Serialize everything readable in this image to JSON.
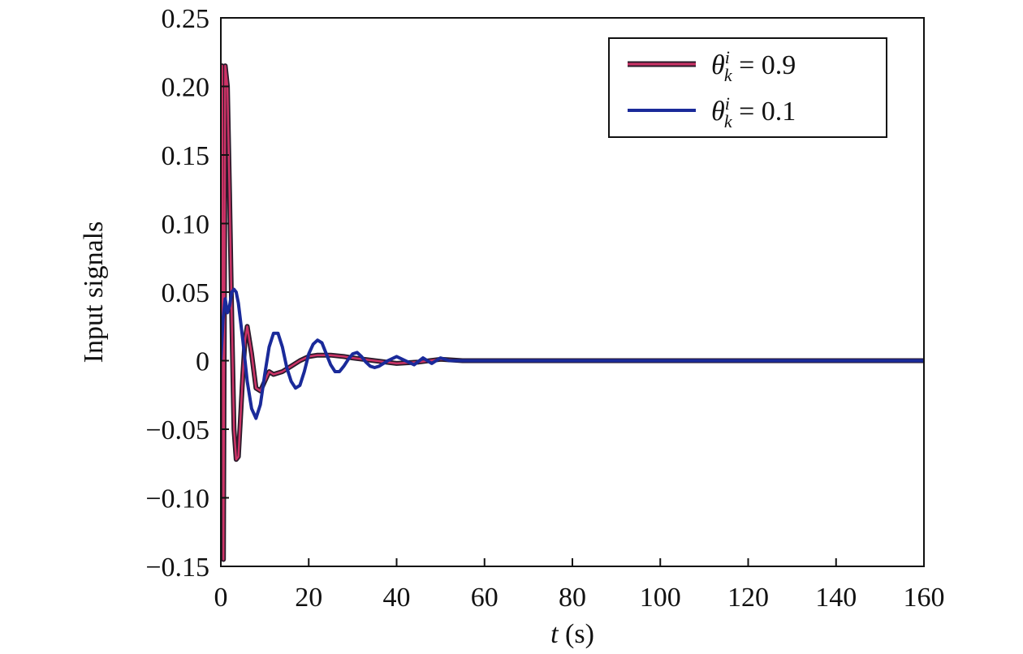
{
  "chart_data": {
    "type": "line",
    "title": "",
    "xlabel_italic": "t",
    "xlabel_rest": " (s)",
    "ylabel": "Input signals",
    "xlim": [
      0,
      160
    ],
    "ylim": [
      -0.15,
      0.25
    ],
    "x_ticks": [
      0,
      20,
      40,
      60,
      80,
      100,
      120,
      140,
      160
    ],
    "x_tick_labels": [
      "0",
      "20",
      "40",
      "60",
      "80",
      "100",
      "120",
      "140",
      "160"
    ],
    "y_ticks": [
      -0.15,
      -0.1,
      -0.05,
      0,
      0.05,
      0.1,
      0.15,
      0.2,
      0.25
    ],
    "y_tick_labels": [
      "−0.15",
      "−0.10",
      "−0.05",
      "0",
      "0.05",
      "0.10",
      "0.15",
      "0.20",
      "0.25"
    ],
    "grid": false,
    "legend_position": "top-right",
    "series": [
      {
        "name": "θ",
        "legend_sub": "k",
        "legend_sup": "i",
        "legend_value": " = 0.9",
        "color": "#cc3366",
        "edge_color": "#2a1a2a",
        "x": [
          0,
          0.3,
          0.6,
          1.0,
          1.5,
          2.0,
          2.5,
          3.0,
          3.5,
          4.0,
          4.5,
          5.0,
          5.5,
          6.0,
          7.0,
          8.0,
          9.0,
          10.0,
          11.0,
          12.0,
          14.0,
          16.0,
          18.0,
          20.0,
          22.0,
          25.0,
          28.0,
          30.0,
          35.0,
          40.0,
          45.0,
          50.0,
          55.0,
          60.0,
          70.0,
          80.0,
          100.0,
          120.0,
          140.0,
          160.0
        ],
        "y": [
          0.0,
          0.215,
          -0.145,
          0.215,
          0.2,
          0.12,
          0.03,
          -0.05,
          -0.072,
          -0.07,
          -0.04,
          -0.01,
          0.015,
          0.025,
          0.005,
          -0.02,
          -0.022,
          -0.015,
          -0.008,
          -0.01,
          -0.008,
          -0.004,
          0.0,
          0.003,
          0.004,
          0.004,
          0.003,
          0.002,
          0.0,
          -0.002,
          -0.001,
          0.001,
          0.0,
          0.0,
          0.0,
          0.0,
          0.0,
          0.0,
          0.0,
          0.0
        ]
      },
      {
        "name": "θ",
        "legend_sub": "k",
        "legend_sup": "i",
        "legend_value": " = 0.1",
        "color": "#1a2a9a",
        "x": [
          0,
          0.5,
          1.0,
          1.5,
          2.0,
          2.5,
          3.0,
          3.5,
          4.0,
          5.0,
          6.0,
          7.0,
          8.0,
          9.0,
          10.0,
          11.0,
          12.0,
          13.0,
          14.0,
          15.0,
          16.0,
          17.0,
          18.0,
          19.0,
          20.0,
          21.0,
          22.0,
          23.0,
          24.0,
          25.0,
          26.0,
          27.0,
          28.0,
          29.0,
          30.0,
          31.0,
          32.0,
          33.0,
          34.0,
          35.0,
          36.0,
          37.0,
          38.0,
          40.0,
          42.0,
          44.0,
          46.0,
          48.0,
          50.0,
          52.0,
          55.0,
          60.0,
          70.0,
          80.0,
          100.0,
          120.0,
          140.0,
          160.0
        ],
        "y": [
          0.0,
          0.03,
          0.045,
          0.035,
          0.04,
          0.05,
          0.052,
          0.05,
          0.042,
          0.015,
          -0.015,
          -0.035,
          -0.042,
          -0.032,
          -0.01,
          0.01,
          0.02,
          0.02,
          0.01,
          -0.005,
          -0.015,
          -0.02,
          -0.018,
          -0.008,
          0.005,
          0.012,
          0.015,
          0.013,
          0.005,
          -0.003,
          -0.008,
          -0.008,
          -0.004,
          0.001,
          0.005,
          0.006,
          0.003,
          -0.001,
          -0.004,
          -0.005,
          -0.004,
          -0.002,
          0.0,
          0.003,
          0.0,
          -0.003,
          0.002,
          -0.002,
          0.002,
          0.0,
          0.0,
          0.0,
          0.0,
          0.0,
          0.0,
          0.0,
          0.0,
          0.0
        ]
      }
    ]
  }
}
